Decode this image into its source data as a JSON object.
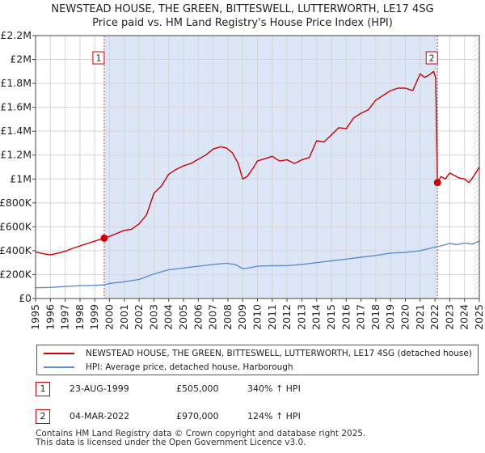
{
  "chart_data": {
    "type": "line",
    "title": "NEWSTEAD HOUSE, THE GREEN, BITTESWELL, LUTTERWORTH, LE17 4SG",
    "subtitle": "Price paid vs. HM Land Registry's House Price Index (HPI)",
    "xlim": [
      1995,
      2025
    ],
    "ylim": [
      0,
      2200000
    ],
    "x_ticks": [
      "1995",
      "1996",
      "1997",
      "1998",
      "1999",
      "2000",
      "2001",
      "2002",
      "2003",
      "2004",
      "2005",
      "2006",
      "2007",
      "2008",
      "2009",
      "2010",
      "2011",
      "2012",
      "2013",
      "2014",
      "2015",
      "2016",
      "2017",
      "2018",
      "2019",
      "2020",
      "2021",
      "2022",
      "2023",
      "2024",
      "2025"
    ],
    "y_ticks": [
      {
        "value": 0,
        "label": "£0"
      },
      {
        "value": 200000,
        "label": "£200K"
      },
      {
        "value": 400000,
        "label": "£400K"
      },
      {
        "value": 600000,
        "label": "£600K"
      },
      {
        "value": 800000,
        "label": "£800K"
      },
      {
        "value": 1000000,
        "label": "£1M"
      },
      {
        "value": 1200000,
        "label": "£1.2M"
      },
      {
        "value": 1400000,
        "label": "£1.4M"
      },
      {
        "value": 1600000,
        "label": "£1.6M"
      },
      {
        "value": 1800000,
        "label": "£1.8M"
      },
      {
        "value": 2000000,
        "label": "£2M"
      },
      {
        "value": 2200000,
        "label": "£2.2M"
      }
    ],
    "grid": true,
    "ownership_shading": {
      "from": 1999.64,
      "to": 2022.17,
      "color": "#dde6f7"
    },
    "hatched_after": 2024.6,
    "series": [
      {
        "name": "NEWSTEAD HOUSE, THE GREEN, BITTESWELL, LUTTERWORTH, LE17 4SG (detached house)",
        "color": "#cc0000",
        "x": [
          1995.0,
          1995.5,
          1996.0,
          1996.5,
          1997.0,
          1997.5,
          1998.0,
          1998.5,
          1999.0,
          1999.64,
          2000.0,
          2000.5,
          2001.0,
          2001.5,
          2002.0,
          2002.5,
          2003.0,
          2003.5,
          2004.0,
          2004.5,
          2005.0,
          2005.5,
          2006.0,
          2006.5,
          2007.0,
          2007.5,
          2007.9,
          2008.3,
          2008.7,
          2009.0,
          2009.3,
          2009.7,
          2010.0,
          2010.5,
          2011.0,
          2011.5,
          2012.0,
          2012.5,
          2013.0,
          2013.5,
          2014.0,
          2014.5,
          2015.0,
          2015.5,
          2016.0,
          2016.5,
          2017.0,
          2017.5,
          2018.0,
          2018.5,
          2019.0,
          2019.5,
          2020.0,
          2020.5,
          2021.0,
          2021.3,
          2021.6,
          2021.9,
          2022.05,
          2022.17,
          2022.4,
          2022.7,
          2023.0,
          2023.3,
          2023.6,
          2024.0,
          2024.3,
          2024.6,
          2025.0
        ],
        "y": [
          390000,
          375000,
          365000,
          380000,
          395000,
          420000,
          440000,
          460000,
          480000,
          505000,
          520000,
          545000,
          570000,
          580000,
          625000,
          700000,
          880000,
          940000,
          1040000,
          1080000,
          1110000,
          1130000,
          1165000,
          1200000,
          1250000,
          1270000,
          1260000,
          1220000,
          1130000,
          1000000,
          1020000,
          1090000,
          1150000,
          1170000,
          1190000,
          1150000,
          1160000,
          1130000,
          1160000,
          1180000,
          1320000,
          1310000,
          1370000,
          1430000,
          1420000,
          1510000,
          1550000,
          1580000,
          1660000,
          1700000,
          1740000,
          1760000,
          1760000,
          1740000,
          1880000,
          1850000,
          1870000,
          1900000,
          1850000,
          970000,
          1020000,
          1000000,
          1050000,
          1030000,
          1010000,
          1000000,
          970000,
          1020000,
          1100000
        ]
      },
      {
        "name": "HPI: Average price, detached house, Harborough",
        "color": "#5b8fd0",
        "x": [
          1995.0,
          1996.0,
          1997.0,
          1998.0,
          1999.0,
          1999.64,
          2000.0,
          2001.0,
          2002.0,
          2003.0,
          2004.0,
          2005.0,
          2006.0,
          2007.0,
          2007.9,
          2008.5,
          2009.0,
          2009.5,
          2010.0,
          2011.0,
          2012.0,
          2013.0,
          2014.0,
          2015.0,
          2016.0,
          2017.0,
          2018.0,
          2019.0,
          2020.0,
          2021.0,
          2022.0,
          2022.17,
          2022.7,
          2023.0,
          2023.5,
          2024.0,
          2024.5,
          2025.0
        ],
        "y": [
          90000,
          93000,
          100000,
          107000,
          110000,
          115000,
          125000,
          140000,
          160000,
          205000,
          240000,
          255000,
          270000,
          285000,
          295000,
          285000,
          250000,
          258000,
          270000,
          275000,
          275000,
          285000,
          300000,
          315000,
          330000,
          345000,
          360000,
          380000,
          385000,
          400000,
          430000,
          433000,
          450000,
          460000,
          450000,
          465000,
          455000,
          480000
        ]
      }
    ],
    "events": [
      {
        "label": "1",
        "x": 1999.64,
        "y": 505000,
        "date": "23-AUG-1999",
        "price": "£505,000",
        "hpi_change": "340% ↑ HPI"
      },
      {
        "label": "2",
        "x": 2022.17,
        "y": 970000,
        "date": "04-MAR-2022",
        "price": "£970,000",
        "hpi_change": "124% ↑ HPI"
      }
    ]
  },
  "legend": {
    "property_label": "NEWSTEAD HOUSE, THE GREEN, BITTESWELL, LUTTERWORTH, LE17 4SG (detached house)",
    "hpi_label": "HPI: Average price, detached house, Harborough"
  },
  "footer": {
    "line1": "Contains HM Land Registry data © Crown copyright and database right 2025.",
    "line2": "This data is licensed under the Open Government Licence v3.0."
  }
}
